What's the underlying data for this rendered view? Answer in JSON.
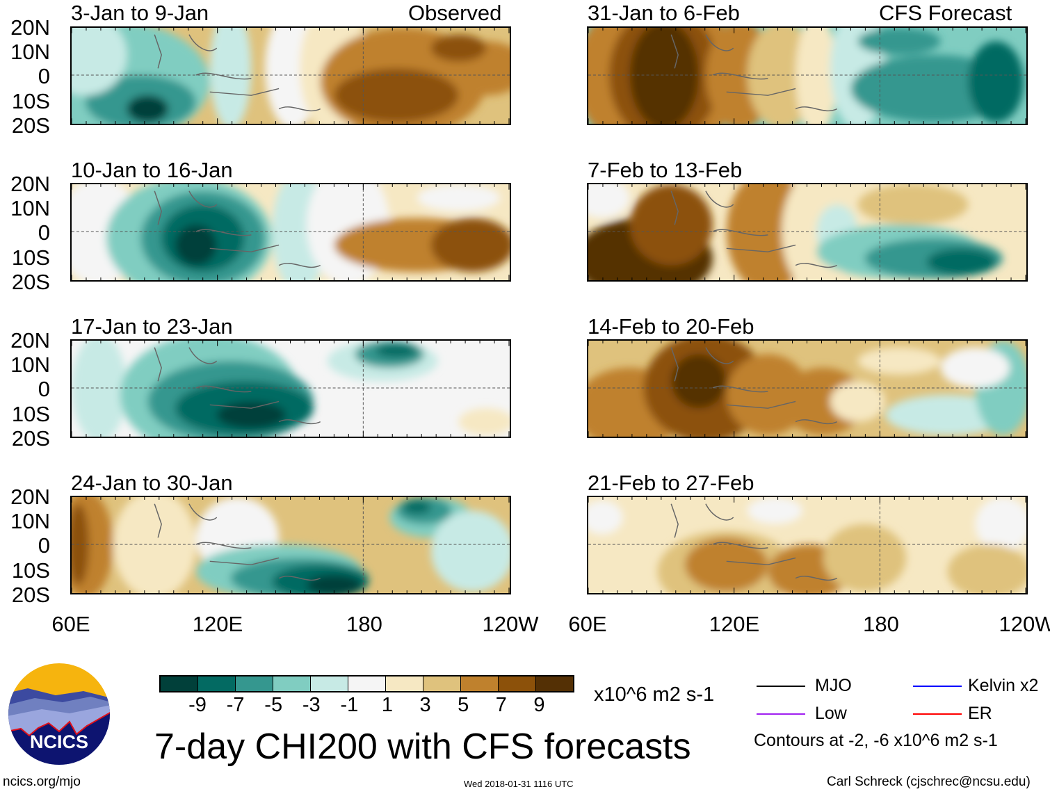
{
  "figure": {
    "title": "7-day CHI200 with CFS forecasts",
    "timestamp": "Wed 2018-01-31 1116 UTC",
    "url": "ncics.org/mjo",
    "credit": "Carl Schreck (cjschrec@ncsu.edu)",
    "logo_text": "NCICS"
  },
  "columns": {
    "observed_label": "Observed",
    "forecast_label": "CFS Forecast"
  },
  "panels": [
    {
      "title": "3-Jan to 9-Jan"
    },
    {
      "title": "10-Jan to 16-Jan"
    },
    {
      "title": "17-Jan to 23-Jan"
    },
    {
      "title": "24-Jan to 30-Jan"
    },
    {
      "title": "31-Jan to 6-Feb"
    },
    {
      "title": "7-Feb to 13-Feb"
    },
    {
      "title": "14-Feb to 20-Feb"
    },
    {
      "title": "21-Feb to 27-Feb"
    }
  ],
  "axes": {
    "lat_labels": [
      "20N",
      "10N",
      "0",
      "10S",
      "20S"
    ],
    "lon_labels": [
      "60E",
      "120E",
      "180",
      "120W"
    ]
  },
  "colorbar": {
    "units": "x10^6 m2 s-1",
    "tick_labels": [
      "-9",
      "-7",
      "-5",
      "-3",
      "-1",
      "1",
      "3",
      "5",
      "7",
      "9"
    ],
    "colors": [
      "#01403a",
      "#036a62",
      "#35978f",
      "#80cdc1",
      "#c7eae5",
      "#f5f5f5",
      "#f6e8c3",
      "#dfc27d",
      "#bf812d",
      "#8c510a",
      "#543005"
    ]
  },
  "legend": {
    "items": [
      {
        "label": "MJO",
        "color": "#000000"
      },
      {
        "label": "Low",
        "color": "#a020f0"
      },
      {
        "label": "Kelvin x2",
        "color": "#0000ff"
      },
      {
        "label": "ER",
        "color": "#ff0000"
      }
    ],
    "note": "Contours at -2, -6 x10^6 m2 s-1"
  }
}
